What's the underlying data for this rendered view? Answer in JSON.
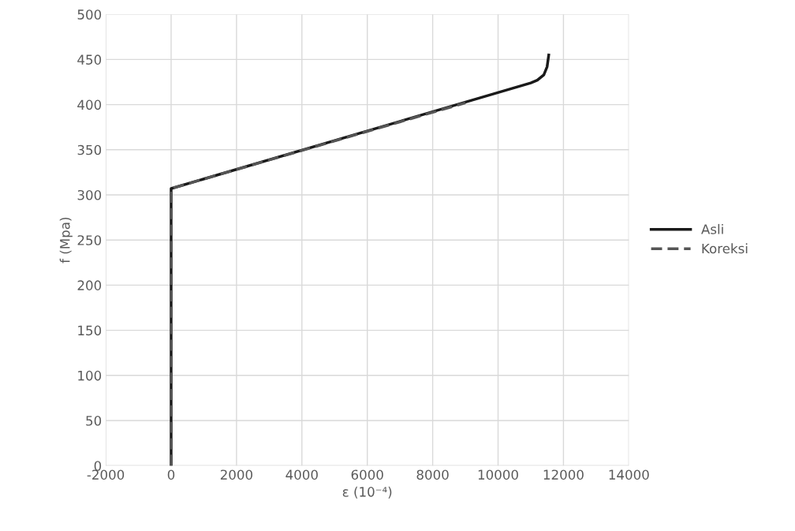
{
  "chart_data": {
    "type": "line",
    "xlabel": "ε (10⁻⁴)",
    "ylabel": "f (Mpa)",
    "xlim": [
      -2000,
      14000
    ],
    "xticks": [
      -2000,
      0,
      2000,
      4000,
      6000,
      8000,
      10000,
      12000,
      14000
    ],
    "ylim": [
      0,
      500
    ],
    "yticks": [
      0,
      50,
      100,
      150,
      200,
      250,
      300,
      350,
      400,
      450,
      500
    ],
    "grid": true,
    "legend": "right",
    "marker": "none",
    "series": [
      {
        "name": "Asli",
        "color": "#1a1a1a",
        "line_style": "solid",
        "x": [
          0,
          0,
          11000,
          11200,
          11400,
          11500,
          11550
        ],
        "values": [
          0,
          307,
          424,
          427,
          433,
          442,
          455
        ]
      },
      {
        "name": "Koreksi",
        "color": "#555555",
        "line_style": "dashed",
        "x": [
          0,
          0,
          9000
        ],
        "values": [
          0,
          307,
          402
        ]
      }
    ]
  }
}
